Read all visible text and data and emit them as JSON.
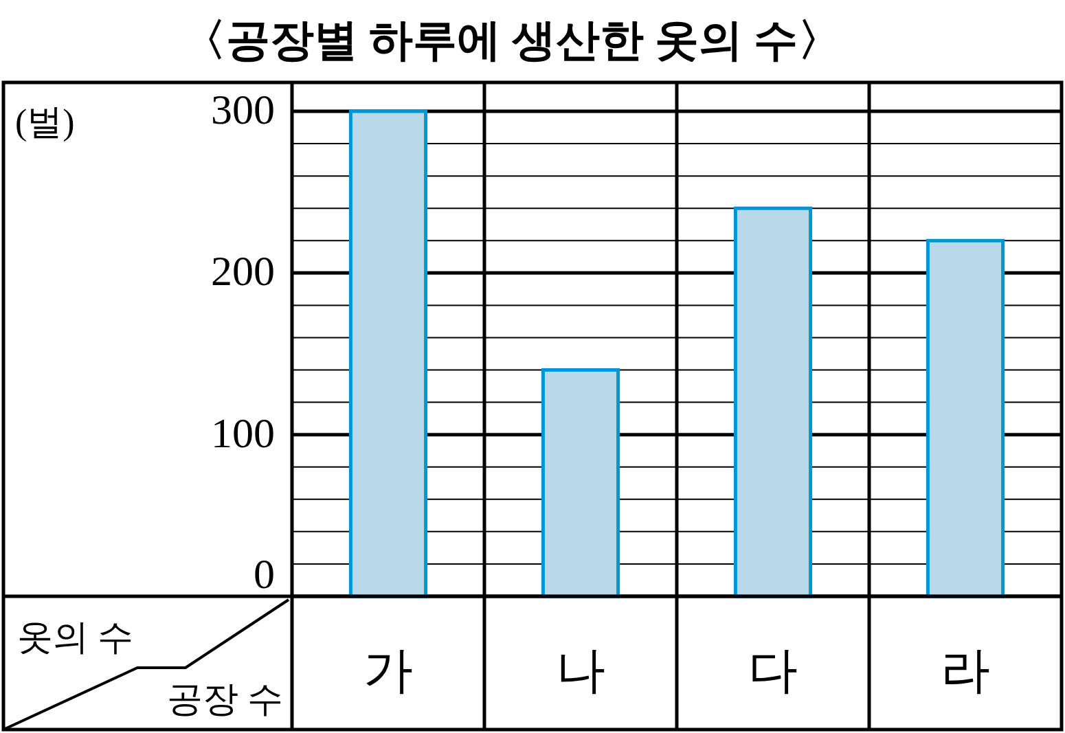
{
  "chart_data": {
    "type": "bar",
    "title": "〈공장별 하루에 생산한 옷의 수〉",
    "xlabel": "공장 수",
    "ylabel": "옷의 수",
    "annotations": [
      "(벌)"
    ],
    "categories": [
      "가",
      "나",
      "다",
      "라"
    ],
    "values": [
      300,
      140,
      240,
      220
    ],
    "color": "#b7d9ea",
    "ylim": [
      0,
      300
    ],
    "yticks": [
      0,
      {
        "value": 20,
        "label": null
      },
      {
        "value": 40,
        "label": null
      },
      {
        "value": 60,
        "label": null
      },
      {
        "value": 80,
        "label": null
      },
      100,
      {
        "value": 120,
        "label": null
      },
      {
        "value": 140,
        "label": null
      },
      {
        "value": 160,
        "label": null
      },
      {
        "value": 180,
        "label": null
      },
      200,
      {
        "value": 220,
        "label": null
      },
      {
        "value": 240,
        "label": null
      },
      {
        "value": 260,
        "label": null
      },
      {
        "value": 280,
        "label": null
      },
      300
    ],
    "grid": true
  }
}
